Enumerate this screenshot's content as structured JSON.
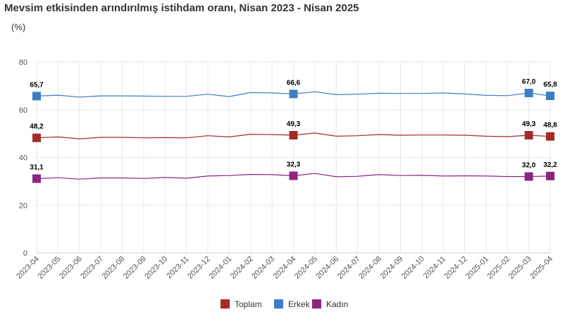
{
  "chart_data": {
    "type": "line",
    "title": "Mevsim etkisinden arındırılmış istihdam oranı, Nisan 2023 - Nisan 2025",
    "subtitle": "(%)",
    "ylim": [
      0,
      80
    ],
    "yticks": [
      "0",
      "20",
      "40",
      "60",
      "80"
    ],
    "grid": true,
    "legend_position": "bottom-center",
    "categories": [
      "2023-04",
      "2023-05",
      "2023-06",
      "2023-07",
      "2023-08",
      "2023-09",
      "2023-10",
      "2023-11",
      "2023-12",
      "2024-01",
      "2024-02",
      "2024-03",
      "2024-04",
      "2024-05",
      "2024-06",
      "2024-07",
      "2024-08",
      "2024-09",
      "2024-10",
      "2024-11",
      "2024-12",
      "2025-01",
      "2025-02",
      "2025-03",
      "2025-04"
    ],
    "series": [
      {
        "name": "Toplam",
        "color": "#a52a2a",
        "values": [
          48.2,
          48.6,
          47.8,
          48.4,
          48.4,
          48.2,
          48.3,
          48.2,
          49.1,
          48.6,
          49.7,
          49.6,
          49.3,
          50.2,
          48.9,
          49.1,
          49.6,
          49.3,
          49.4,
          49.4,
          49.3,
          48.9,
          48.7,
          49.3,
          48.8
        ]
      },
      {
        "name": "Erkek",
        "color": "#3f7cc4",
        "values": [
          65.7,
          66.1,
          65.3,
          65.8,
          65.8,
          65.7,
          65.6,
          65.6,
          66.5,
          65.5,
          67.2,
          67.0,
          66.6,
          67.5,
          66.3,
          66.5,
          66.9,
          66.8,
          66.8,
          67.0,
          66.6,
          66.0,
          65.9,
          67.0,
          65.8
        ]
      },
      {
        "name": "Kadın",
        "color": "#8b2580",
        "values": [
          31.1,
          31.5,
          30.9,
          31.4,
          31.4,
          31.2,
          31.6,
          31.3,
          32.2,
          32.4,
          32.9,
          32.8,
          32.3,
          33.3,
          31.9,
          32.1,
          32.8,
          32.4,
          32.5,
          32.2,
          32.3,
          32.2,
          32.0,
          32.0,
          32.2
        ]
      }
    ],
    "data_labels": [
      {
        "series": 0,
        "index": 0,
        "text": "48,2"
      },
      {
        "series": 0,
        "index": 12,
        "text": "49,3"
      },
      {
        "series": 0,
        "index": 23,
        "text": "49,3"
      },
      {
        "series": 0,
        "index": 24,
        "text": "48,8"
      },
      {
        "series": 1,
        "index": 0,
        "text": "65,7"
      },
      {
        "series": 1,
        "index": 12,
        "text": "66,6"
      },
      {
        "series": 1,
        "index": 23,
        "text": "67,0"
      },
      {
        "series": 1,
        "index": 24,
        "text": "65,8"
      },
      {
        "series": 2,
        "index": 0,
        "text": "31,1"
      },
      {
        "series": 2,
        "index": 12,
        "text": "32,3"
      },
      {
        "series": 2,
        "index": 23,
        "text": "32,0"
      },
      {
        "series": 2,
        "index": 24,
        "text": "32,2"
      }
    ]
  }
}
